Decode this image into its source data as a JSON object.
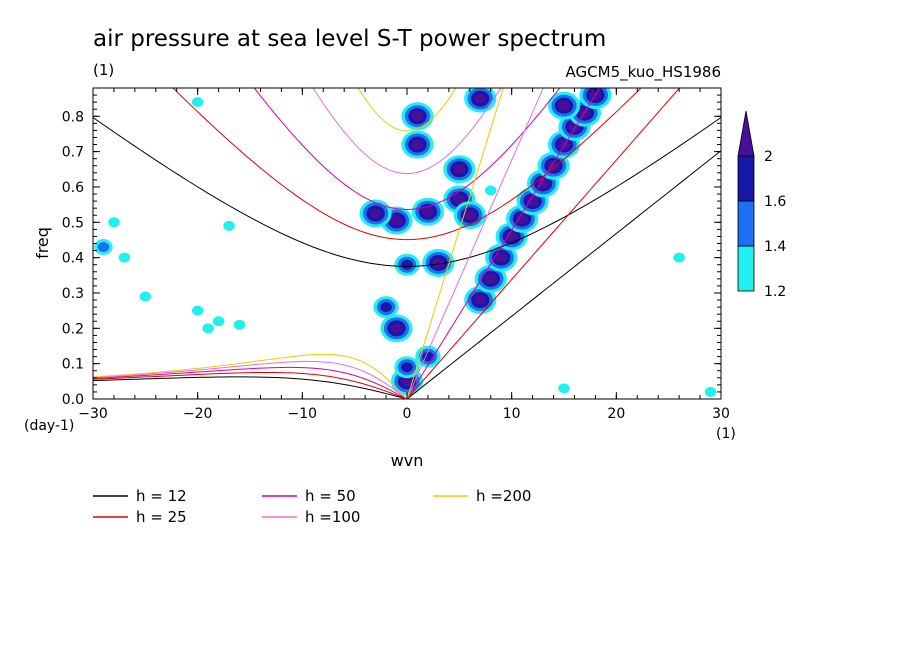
{
  "chart_data": {
    "type": "heatmap",
    "title": "air pressure at sea level S-T power spectrum",
    "units_label": "(1)",
    "model_label": "AGCM5_kuo_HS1986",
    "xlabel": "wvn",
    "ylabel": "freq",
    "x_unit_label": "(1)",
    "y_unit_label": "(day-1)",
    "xlim": [
      -30,
      30
    ],
    "ylim": [
      0,
      0.88
    ],
    "xticks": [
      -30,
      -20,
      -10,
      0,
      10,
      20,
      30
    ],
    "yticks": [
      0.0,
      0.1,
      0.2,
      0.3,
      0.4,
      0.5,
      0.6,
      0.7,
      0.8
    ],
    "ytick_labels": [
      "0.0",
      "0.1",
      "0.2",
      "0.3",
      "0.4",
      "0.5",
      "0.6",
      "0.7",
      "0.8"
    ],
    "colorbar": {
      "levels": [
        1.2,
        1.4,
        1.6,
        2
      ],
      "level_labels": [
        "1.2",
        "1.4",
        "1.6",
        "2"
      ],
      "colors": [
        "#22f0f0",
        "#1f6ff2",
        "#1818a8",
        "#4a0f98"
      ]
    },
    "dispersion_curves": [
      {
        "label": "h = 12",
        "h": 12,
        "color": "#000000"
      },
      {
        "label": "h = 25",
        "h": 25,
        "color": "#e00000"
      },
      {
        "label": "h = 50",
        "h": 50,
        "color": "#d600a8"
      },
      {
        "label": "h =100",
        "h": 100,
        "color": "#e070e0"
      },
      {
        "label": "h =200",
        "h": 200,
        "color": "#f0c800"
      }
    ],
    "spectral_peaks": [
      {
        "wvn": 0,
        "freq": 0.05,
        "level": 2
      },
      {
        "wvn": 1,
        "freq": 0.72,
        "level": 2
      },
      {
        "wvn": 1,
        "freq": 0.8,
        "level": 2
      },
      {
        "wvn": -1,
        "freq": 0.505,
        "level": 2
      },
      {
        "wvn": -3,
        "freq": 0.525,
        "level": 2
      },
      {
        "wvn": 2,
        "freq": 0.53,
        "level": 2
      },
      {
        "wvn": 5,
        "freq": 0.565,
        "level": 2
      },
      {
        "wvn": 5,
        "freq": 0.65,
        "level": 2
      },
      {
        "wvn": 6,
        "freq": 0.52,
        "level": 2
      },
      {
        "wvn": 7,
        "freq": 0.85,
        "level": 2
      },
      {
        "wvn": 0,
        "freq": 0.38,
        "level": 1.6
      },
      {
        "wvn": 3,
        "freq": 0.385,
        "level": 2
      },
      {
        "wvn": -1,
        "freq": 0.2,
        "level": 2
      },
      {
        "wvn": -2,
        "freq": 0.26,
        "level": 1.6
      },
      {
        "wvn": 2,
        "freq": 0.12,
        "level": 1.6
      },
      {
        "wvn": 0,
        "freq": 0.09,
        "level": 1.6
      },
      {
        "wvn": 7,
        "freq": 0.28,
        "level": 2
      },
      {
        "wvn": 8,
        "freq": 0.34,
        "level": 2
      },
      {
        "wvn": 9,
        "freq": 0.4,
        "level": 2
      },
      {
        "wvn": 10,
        "freq": 0.46,
        "level": 2
      },
      {
        "wvn": 11,
        "freq": 0.51,
        "level": 2
      },
      {
        "wvn": 12,
        "freq": 0.56,
        "level": 2
      },
      {
        "wvn": 13,
        "freq": 0.61,
        "level": 2
      },
      {
        "wvn": 14,
        "freq": 0.66,
        "level": 2
      },
      {
        "wvn": 15,
        "freq": 0.72,
        "level": 2
      },
      {
        "wvn": 16,
        "freq": 0.77,
        "level": 2
      },
      {
        "wvn": 17,
        "freq": 0.81,
        "level": 2
      },
      {
        "wvn": 18,
        "freq": 0.86,
        "level": 2
      },
      {
        "wvn": 15,
        "freq": 0.83,
        "level": 2
      },
      {
        "wvn": -29,
        "freq": 0.43,
        "level": 1.4
      },
      {
        "wvn": -27,
        "freq": 0.4,
        "level": 1.2
      },
      {
        "wvn": -28,
        "freq": 0.5,
        "level": 1.2
      },
      {
        "wvn": -25,
        "freq": 0.29,
        "level": 1.2
      },
      {
        "wvn": -20,
        "freq": 0.25,
        "level": 1.2
      },
      {
        "wvn": -19,
        "freq": 0.2,
        "level": 1.2
      },
      {
        "wvn": -18,
        "freq": 0.22,
        "level": 1.2
      },
      {
        "wvn": -16,
        "freq": 0.21,
        "level": 1.2
      },
      {
        "wvn": -17,
        "freq": 0.49,
        "level": 1.2
      },
      {
        "wvn": -20,
        "freq": 0.84,
        "level": 1.2
      },
      {
        "wvn": 8,
        "freq": 0.59,
        "level": 1.2
      },
      {
        "wvn": 15,
        "freq": 0.03,
        "level": 1.2
      },
      {
        "wvn": 29,
        "freq": 0.02,
        "level": 1.2
      },
      {
        "wvn": 26,
        "freq": 0.4,
        "level": 1.2
      }
    ]
  }
}
